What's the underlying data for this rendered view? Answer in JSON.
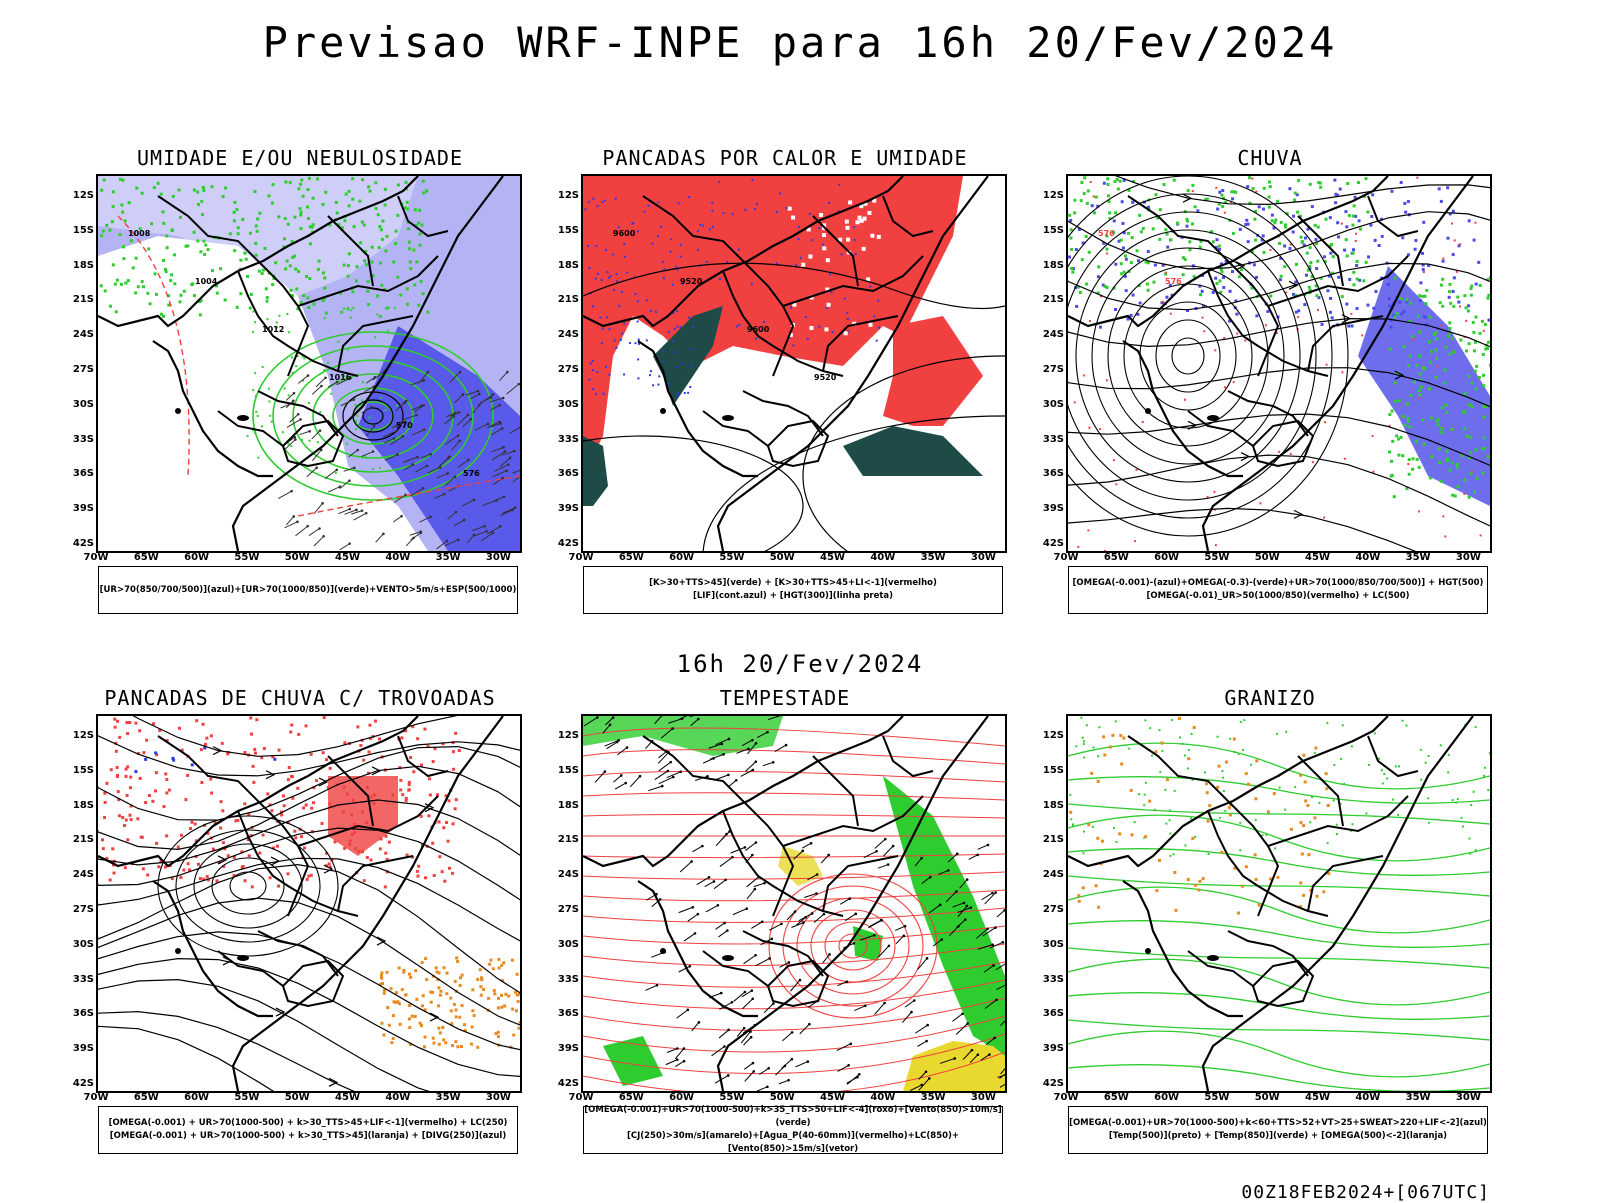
{
  "main_title": "Previsao WRF-INPE  para 16h 20/Fev/2024",
  "middle_title": "16h 20/Fev/2024",
  "footer": "00Z18FEB2024+[067UTC]",
  "lat_labels": [
    "12S",
    "15S",
    "18S",
    "21S",
    "24S",
    "27S",
    "30S",
    "33S",
    "36S",
    "39S",
    "42S"
  ],
  "lon_labels": [
    "70W",
    "65W",
    "60W",
    "55W",
    "50W",
    "45W",
    "40W",
    "35W",
    "30W"
  ],
  "panels": [
    {
      "title": "UMIDADE E/OU NEBULOSIDADE",
      "legend_line1": "[UR>70(850/700/500)](azul)+[UR>70(1000/850)](verde)+VENTO>5m/s+ESP(500/1000)",
      "legend_line2": "",
      "contour_labels": [
        "1008",
        "1004",
        "1012",
        "1016",
        "570",
        "576"
      ]
    },
    {
      "title": "PANCADAS POR CALOR E UMIDADE",
      "legend_line1": "[K>30+TTS>45](verde) + [K>30+TTS>45+LI<-1](vermelho)",
      "legend_line2": "[LIF](cont.azul) + [HGT(300)](linha preta)",
      "contour_labels": [
        "9600",
        "9520",
        "9600",
        "9520"
      ]
    },
    {
      "title": "CHUVA",
      "legend_line1": "[OMEGA(-0.001)-(azul)+OMEGA(-0.3)-(verde)+UR>70(1000/850/700/500)] + HGT(500)",
      "legend_line2": "[OMEGA(-0.01)_UR>50(1000/850)(vermelho) + LC(500)",
      "contour_labels": [
        "576",
        "576"
      ]
    },
    {
      "title": "PANCADAS DE CHUVA C/ TROVOADAS",
      "legend_line1": "[OMEGA(-0.001) + UR>70(1000-500) + k>30_TTS>45+LIF<-1](vermelho) + LC(250)",
      "legend_line2": "[OMEGA(-0.001) + UR>70(1000-500) + k>30_TTS>45](laranja) + [DIVG(250)](azul)",
      "contour_labels": []
    },
    {
      "title": "TEMPESTADE",
      "legend_line1": "[OMEGA(-0.001)+UR>70(1000-500)+k>35_TTS>50+LIF<-4](roxo)+[Vento(850)>10m/s](verde)",
      "legend_line2": "[CJ(250)>30m/s](amarelo)+[Agua_P(40-60mm)](vermelho)+LC(850)+[Vento(850)>15m/s](vetor)",
      "contour_labels": []
    },
    {
      "title": "GRANIZO",
      "legend_line1": "[OMEGA(-0.001)+UR>70(1000-500)+k<60+TTS>52+VT>25+SWEAT>220+LIF<-2](azul)",
      "legend_line2": "[Temp(500)](preto) + [Temp(850)](verde) + [OMEGA(500)<-2](laranja)",
      "contour_labels": []
    }
  ],
  "colors": {
    "humid_blue": "#4a4ae8",
    "light_blue": "#b4b4f4",
    "green": "#2ecc2e",
    "red": "#f04040",
    "dark_teal": "#1e4a48",
    "yellow": "#e8d830",
    "orange": "#e88a20",
    "black": "#000000"
  }
}
